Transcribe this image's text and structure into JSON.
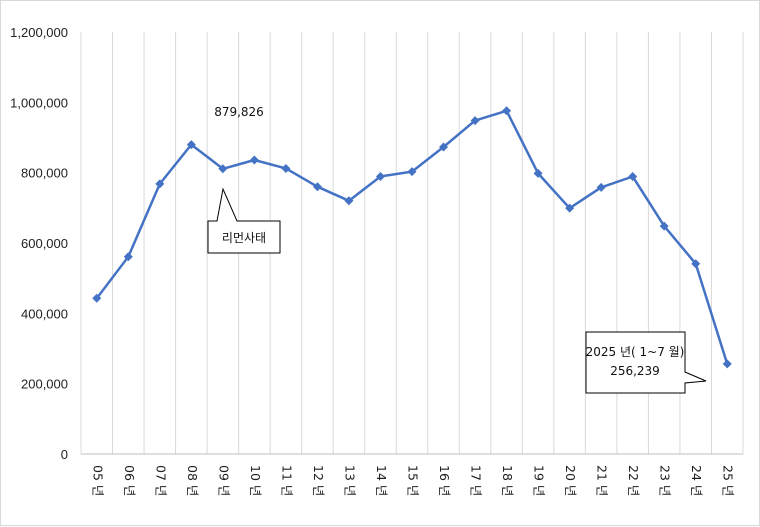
{
  "chart_data": {
    "type": "line",
    "title": "",
    "xlabel": "",
    "ylabel": "",
    "categories": [
      "05 년",
      "06 년",
      "07 년",
      "08 년",
      "09 년",
      "10 년",
      "11 년",
      "12 년",
      "13 년",
      "14 년",
      "15 년",
      "16 년",
      "17 년",
      "18 년",
      "19 년",
      "20 년",
      "21 년",
      "22 년",
      "23 년",
      "24 년",
      "25 년"
    ],
    "series": [
      {
        "values": [
          443000,
          561000,
          768000,
          879826,
          811000,
          836000,
          812000,
          760000,
          720000,
          789000,
          803000,
          873000,
          948000,
          976000,
          798000,
          699000,
          758000,
          789000,
          648000,
          541000,
          256239
        ]
      }
    ],
    "ylim": [
      0,
      1200000
    ],
    "yticks": [
      "0",
      "200,000",
      "400,000",
      "600,000",
      "800,000",
      "1,000,000",
      "1,200,000"
    ],
    "grid": "vertical",
    "legend": "none",
    "line_color": "#4472c4",
    "annotations": {
      "peak_label": "879,826",
      "event_label": "리먼사태",
      "latest_label_line1": "2025 년( 1~7 월)",
      "latest_label_line2": "256,239"
    }
  }
}
